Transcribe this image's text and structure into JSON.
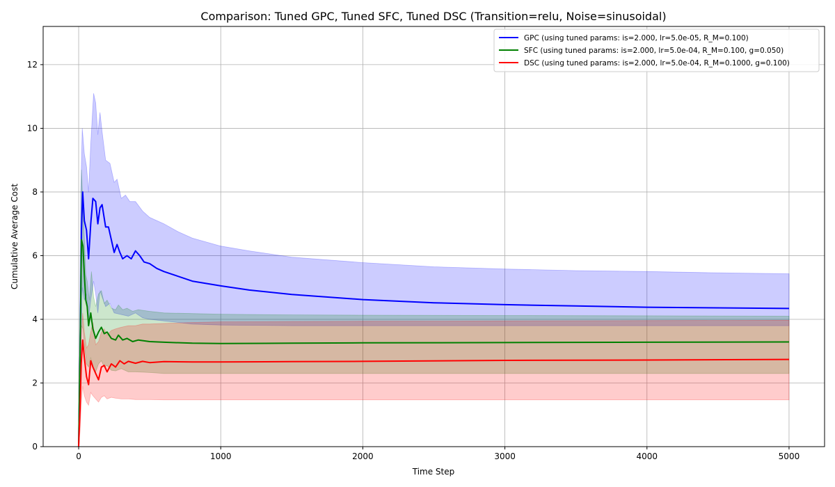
{
  "chart_data": {
    "type": "line",
    "title": "Comparison: Tuned GPC, Tuned SFC, Tuned DSC (Transition=relu, Noise=sinusoidal)",
    "xlabel": "Time Step",
    "ylabel": "Cumulative Average Cost",
    "xlim": [
      -250,
      5250
    ],
    "ylim": [
      0,
      13.2
    ],
    "xticks": [
      0,
      1000,
      2000,
      3000,
      4000,
      5000
    ],
    "yticks": [
      0,
      2,
      4,
      6,
      8,
      10,
      12
    ],
    "grid": true,
    "legend_position": "top-right",
    "series": [
      {
        "name": "GPC  (using tuned params: is=2.000, lr=5.0e-05, R_M=0.100)",
        "color": "#0000ff",
        "fill_color": "#0000ff",
        "mean": [
          [
            0,
            0
          ],
          [
            10,
            3.0
          ],
          [
            20,
            6.8
          ],
          [
            28,
            8.0
          ],
          [
            40,
            7.1
          ],
          [
            55,
            6.8
          ],
          [
            70,
            5.9
          ],
          [
            85,
            7.0
          ],
          [
            100,
            7.8
          ],
          [
            120,
            7.7
          ],
          [
            135,
            7.0
          ],
          [
            150,
            7.5
          ],
          [
            165,
            7.6
          ],
          [
            190,
            6.9
          ],
          [
            210,
            6.9
          ],
          [
            230,
            6.5
          ],
          [
            250,
            6.1
          ],
          [
            270,
            6.35
          ],
          [
            290,
            6.1
          ],
          [
            310,
            5.9
          ],
          [
            340,
            6.0
          ],
          [
            370,
            5.9
          ],
          [
            400,
            6.15
          ],
          [
            430,
            6.0
          ],
          [
            460,
            5.8
          ],
          [
            500,
            5.75
          ],
          [
            550,
            5.6
          ],
          [
            600,
            5.5
          ],
          [
            700,
            5.35
          ],
          [
            800,
            5.2
          ],
          [
            1000,
            5.05
          ],
          [
            1200,
            4.92
          ],
          [
            1500,
            4.78
          ],
          [
            2000,
            4.62
          ],
          [
            2500,
            4.52
          ],
          [
            3000,
            4.46
          ],
          [
            3500,
            4.42
          ],
          [
            4000,
            4.38
          ],
          [
            4500,
            4.36
          ],
          [
            5000,
            4.34
          ]
        ],
        "upper": [
          [
            0,
            0
          ],
          [
            15,
            8.0
          ],
          [
            25,
            10.0
          ],
          [
            40,
            9.2
          ],
          [
            55,
            8.8
          ],
          [
            70,
            8.0
          ],
          [
            85,
            9.5
          ],
          [
            105,
            11.1
          ],
          [
            120,
            10.8
          ],
          [
            135,
            9.8
          ],
          [
            150,
            10.5
          ],
          [
            165,
            9.9
          ],
          [
            190,
            9.0
          ],
          [
            220,
            8.9
          ],
          [
            250,
            8.3
          ],
          [
            270,
            8.4
          ],
          [
            300,
            7.8
          ],
          [
            330,
            7.9
          ],
          [
            360,
            7.7
          ],
          [
            400,
            7.7
          ],
          [
            450,
            7.4
          ],
          [
            500,
            7.2
          ],
          [
            600,
            7.0
          ],
          [
            700,
            6.75
          ],
          [
            800,
            6.55
          ],
          [
            1000,
            6.3
          ],
          [
            1200,
            6.15
          ],
          [
            1500,
            5.95
          ],
          [
            2000,
            5.78
          ],
          [
            2500,
            5.65
          ],
          [
            3000,
            5.58
          ],
          [
            3500,
            5.53
          ],
          [
            4000,
            5.5
          ],
          [
            4500,
            5.46
          ],
          [
            5000,
            5.43
          ]
        ],
        "lower": [
          [
            0,
            0
          ],
          [
            15,
            3.0
          ],
          [
            25,
            5.0
          ],
          [
            40,
            4.6
          ],
          [
            55,
            4.8
          ],
          [
            70,
            4.0
          ],
          [
            85,
            4.6
          ],
          [
            105,
            5.2
          ],
          [
            120,
            4.8
          ],
          [
            135,
            4.2
          ],
          [
            150,
            4.9
          ],
          [
            165,
            4.7
          ],
          [
            190,
            4.4
          ],
          [
            220,
            4.5
          ],
          [
            250,
            4.2
          ],
          [
            300,
            4.15
          ],
          [
            350,
            4.1
          ],
          [
            400,
            4.2
          ],
          [
            450,
            4.05
          ],
          [
            500,
            4.0
          ],
          [
            600,
            3.95
          ],
          [
            700,
            3.9
          ],
          [
            800,
            3.85
          ],
          [
            1000,
            3.82
          ],
          [
            1500,
            3.8
          ],
          [
            2000,
            3.8
          ],
          [
            2500,
            3.8
          ],
          [
            3000,
            3.8
          ],
          [
            4000,
            3.8
          ],
          [
            5000,
            3.8
          ]
        ]
      },
      {
        "name": "SFC  (using tuned params: is=2.000, lr=5.0e-04, R_M=0.100, g=0.050)",
        "color": "#008000",
        "fill_color": "#008000",
        "mean": [
          [
            0,
            0
          ],
          [
            10,
            3.0
          ],
          [
            20,
            6.5
          ],
          [
            30,
            6.3
          ],
          [
            40,
            5.4
          ],
          [
            50,
            4.6
          ],
          [
            60,
            4.4
          ],
          [
            70,
            3.8
          ],
          [
            85,
            4.2
          ],
          [
            100,
            3.7
          ],
          [
            120,
            3.4
          ],
          [
            140,
            3.6
          ],
          [
            160,
            3.75
          ],
          [
            180,
            3.55
          ],
          [
            200,
            3.6
          ],
          [
            230,
            3.4
          ],
          [
            260,
            3.35
          ],
          [
            280,
            3.5
          ],
          [
            310,
            3.35
          ],
          [
            340,
            3.4
          ],
          [
            380,
            3.3
          ],
          [
            420,
            3.35
          ],
          [
            500,
            3.3
          ],
          [
            600,
            3.28
          ],
          [
            800,
            3.25
          ],
          [
            1000,
            3.24
          ],
          [
            1500,
            3.25
          ],
          [
            2000,
            3.26
          ],
          [
            3000,
            3.27
          ],
          [
            4000,
            3.28
          ],
          [
            5000,
            3.29
          ]
        ],
        "upper": [
          [
            0,
            0
          ],
          [
            10,
            4.0
          ],
          [
            20,
            8.7
          ],
          [
            30,
            7.5
          ],
          [
            40,
            6.6
          ],
          [
            50,
            5.4
          ],
          [
            60,
            5.2
          ],
          [
            75,
            4.6
          ],
          [
            90,
            5.5
          ],
          [
            105,
            4.7
          ],
          [
            120,
            4.4
          ],
          [
            140,
            4.8
          ],
          [
            160,
            4.9
          ],
          [
            180,
            4.5
          ],
          [
            200,
            4.6
          ],
          [
            230,
            4.35
          ],
          [
            260,
            4.3
          ],
          [
            280,
            4.45
          ],
          [
            310,
            4.3
          ],
          [
            340,
            4.35
          ],
          [
            380,
            4.25
          ],
          [
            420,
            4.3
          ],
          [
            500,
            4.25
          ],
          [
            600,
            4.2
          ],
          [
            800,
            4.18
          ],
          [
            1000,
            4.16
          ],
          [
            1500,
            4.14
          ],
          [
            2000,
            4.13
          ],
          [
            3000,
            4.12
          ],
          [
            4000,
            4.11
          ],
          [
            5000,
            4.1
          ]
        ],
        "lower": [
          [
            0,
            0
          ],
          [
            10,
            2.2
          ],
          [
            20,
            3.8
          ],
          [
            30,
            3.7
          ],
          [
            40,
            3.2
          ],
          [
            55,
            2.6
          ],
          [
            70,
            2.5
          ],
          [
            85,
            2.8
          ],
          [
            100,
            2.5
          ],
          [
            120,
            2.35
          ],
          [
            140,
            2.6
          ],
          [
            160,
            2.7
          ],
          [
            180,
            2.5
          ],
          [
            200,
            2.55
          ],
          [
            230,
            2.4
          ],
          [
            260,
            2.38
          ],
          [
            300,
            2.45
          ],
          [
            350,
            2.35
          ],
          [
            400,
            2.35
          ],
          [
            500,
            2.33
          ],
          [
            600,
            2.3
          ],
          [
            800,
            2.3
          ],
          [
            1000,
            2.3
          ],
          [
            2000,
            2.3
          ],
          [
            3000,
            2.3
          ],
          [
            4000,
            2.3
          ],
          [
            5000,
            2.3
          ]
        ]
      },
      {
        "name": "DSC  (using tuned params: is=2.000, lr=5.0e-04, R_M=0.1000, g=0.100)",
        "color": "#ff0000",
        "fill_color": "#ff0000",
        "mean": [
          [
            0,
            0
          ],
          [
            10,
            1.2
          ],
          [
            18,
            2.6
          ],
          [
            28,
            3.35
          ],
          [
            40,
            2.8
          ],
          [
            55,
            2.2
          ],
          [
            70,
            1.95
          ],
          [
            85,
            2.7
          ],
          [
            100,
            2.5
          ],
          [
            120,
            2.3
          ],
          [
            140,
            2.1
          ],
          [
            160,
            2.5
          ],
          [
            180,
            2.55
          ],
          [
            200,
            2.35
          ],
          [
            230,
            2.6
          ],
          [
            260,
            2.5
          ],
          [
            290,
            2.7
          ],
          [
            320,
            2.6
          ],
          [
            350,
            2.68
          ],
          [
            400,
            2.62
          ],
          [
            450,
            2.68
          ],
          [
            500,
            2.64
          ],
          [
            600,
            2.67
          ],
          [
            800,
            2.66
          ],
          [
            1000,
            2.66
          ],
          [
            1500,
            2.67
          ],
          [
            2000,
            2.68
          ],
          [
            3000,
            2.71
          ],
          [
            4000,
            2.72
          ],
          [
            5000,
            2.74
          ]
        ],
        "upper": [
          [
            0,
            0
          ],
          [
            10,
            2.0
          ],
          [
            18,
            3.4
          ],
          [
            28,
            4.2
          ],
          [
            40,
            3.6
          ],
          [
            55,
            3.1
          ],
          [
            70,
            3.2
          ],
          [
            85,
            3.6
          ],
          [
            100,
            3.9
          ],
          [
            120,
            3.2
          ],
          [
            140,
            3.3
          ],
          [
            160,
            3.6
          ],
          [
            180,
            3.7
          ],
          [
            200,
            3.5
          ],
          [
            230,
            3.65
          ],
          [
            260,
            3.7
          ],
          [
            300,
            3.75
          ],
          [
            350,
            3.8
          ],
          [
            400,
            3.8
          ],
          [
            450,
            3.85
          ],
          [
            500,
            3.85
          ],
          [
            600,
            3.87
          ],
          [
            800,
            3.9
          ],
          [
            1000,
            3.92
          ],
          [
            1500,
            3.93
          ],
          [
            2000,
            3.94
          ],
          [
            3000,
            3.95
          ],
          [
            4000,
            3.96
          ],
          [
            5000,
            3.97
          ]
        ],
        "lower": [
          [
            0,
            0
          ],
          [
            10,
            0.5
          ],
          [
            18,
            1.3
          ],
          [
            28,
            1.9
          ],
          [
            40,
            1.6
          ],
          [
            55,
            1.4
          ],
          [
            70,
            1.3
          ],
          [
            85,
            1.7
          ],
          [
            100,
            1.6
          ],
          [
            120,
            1.5
          ],
          [
            140,
            1.4
          ],
          [
            160,
            1.55
          ],
          [
            180,
            1.6
          ],
          [
            200,
            1.5
          ],
          [
            230,
            1.55
          ],
          [
            260,
            1.52
          ],
          [
            300,
            1.5
          ],
          [
            350,
            1.5
          ],
          [
            400,
            1.48
          ],
          [
            500,
            1.48
          ],
          [
            600,
            1.47
          ],
          [
            800,
            1.47
          ],
          [
            1000,
            1.47
          ],
          [
            2000,
            1.47
          ],
          [
            3000,
            1.47
          ],
          [
            4000,
            1.47
          ],
          [
            5000,
            1.47
          ]
        ]
      }
    ]
  }
}
